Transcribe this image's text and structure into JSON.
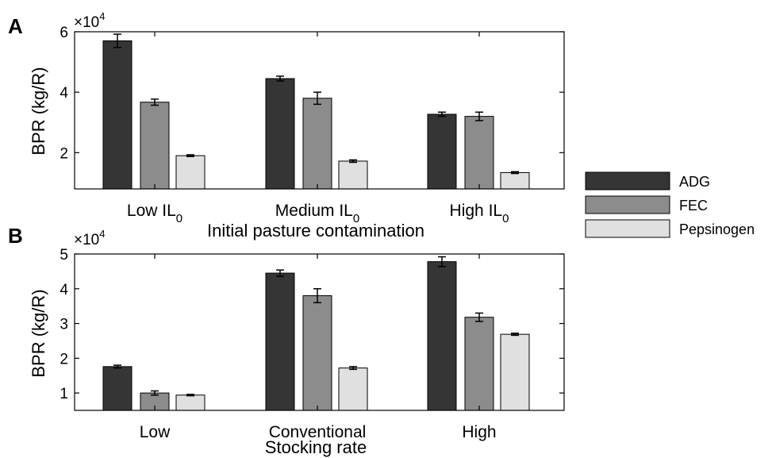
{
  "colors": {
    "ADG": "#353535",
    "FEC": "#8c8c8c",
    "Pepsinogen": "#e0e0e0",
    "axis": "#000000"
  },
  "legend": {
    "entries": [
      "ADG",
      "FEC",
      "Pepsinogen"
    ]
  },
  "chart_data": [
    {
      "panel": "A",
      "type": "bar",
      "ylabel": "BPR (kg/R)",
      "multiplier": "×10",
      "multiplier_exp": "4",
      "xlabel": "Initial pasture contamination",
      "categories": [
        {
          "base": "Low IL",
          "sub": "0"
        },
        {
          "base": "Medium IL",
          "sub": "0"
        },
        {
          "base": "High IL",
          "sub": "0"
        }
      ],
      "ylim": [
        0.8,
        6
      ],
      "yticks": [
        2,
        4,
        6
      ],
      "series": [
        {
          "name": "ADG",
          "values": [
            5.7,
            4.45,
            3.27
          ],
          "errors": [
            0.22,
            0.08,
            0.07
          ]
        },
        {
          "name": "FEC",
          "values": [
            3.67,
            3.8,
            3.2
          ],
          "errors": [
            0.1,
            0.2,
            0.14
          ]
        },
        {
          "name": "Pepsinogen",
          "values": [
            1.9,
            1.72,
            1.34
          ],
          "errors": [
            0.03,
            0.04,
            0.03
          ]
        }
      ]
    },
    {
      "panel": "B",
      "type": "bar",
      "ylabel": "BPR (kg/R)",
      "multiplier": "×10",
      "multiplier_exp": "4",
      "xlabel": "Stocking rate",
      "categories": [
        {
          "base": "Low",
          "sub": ""
        },
        {
          "base": "Conventional",
          "sub": ""
        },
        {
          "base": "High",
          "sub": ""
        }
      ],
      "ylim": [
        0.5,
        5
      ],
      "yticks": [
        1,
        2,
        3,
        4,
        5
      ],
      "series": [
        {
          "name": "ADG",
          "values": [
            1.76,
            4.45,
            4.78
          ],
          "errors": [
            0.04,
            0.09,
            0.14
          ]
        },
        {
          "name": "FEC",
          "values": [
            1.0,
            3.8,
            3.18
          ],
          "errors": [
            0.06,
            0.2,
            0.12
          ]
        },
        {
          "name": "Pepsinogen",
          "values": [
            0.94,
            1.72,
            2.69
          ],
          "errors": [
            0.02,
            0.04,
            0.03
          ]
        }
      ]
    }
  ]
}
